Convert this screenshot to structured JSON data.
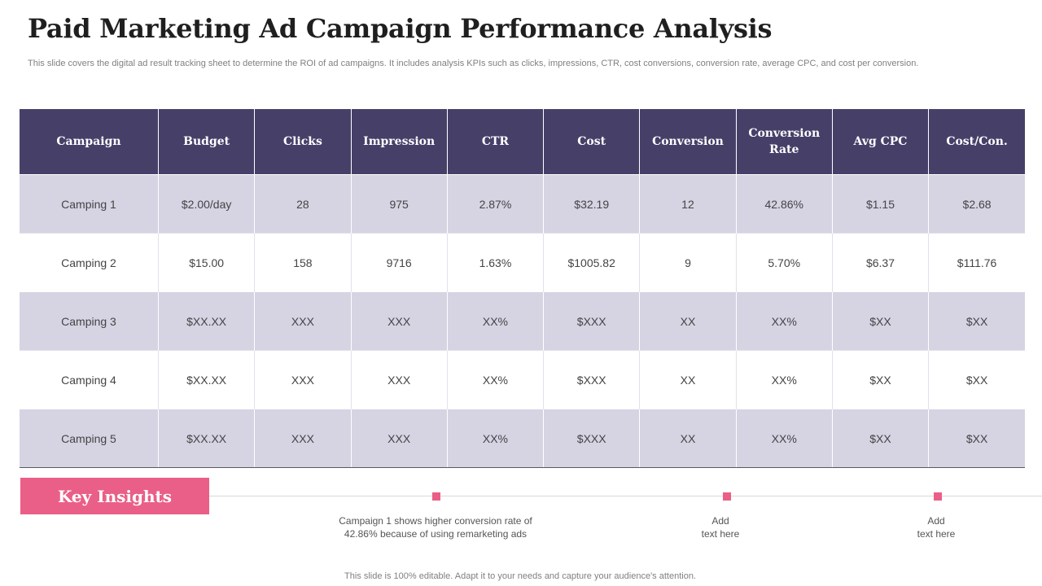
{
  "title": "Paid Marketing Ad Campaign Performance Analysis",
  "subtitle": "This slide covers the digital ad result tracking sheet to determine the ROI of ad campaigns. It includes analysis KPIs such as clicks, impressions, CTR, cost conversions, conversion rate, average CPC, and cost per conversion.",
  "table": {
    "headers": [
      "Campaign",
      "Budget",
      "Clicks",
      "Impression",
      "CTR",
      "Cost",
      "Conversion",
      "Conversion Rate",
      "Avg CPC",
      "Cost/Con."
    ],
    "rows": [
      [
        "Camping 1",
        "$2.00/day",
        "28",
        "975",
        "2.87%",
        "$32.19",
        "12",
        "42.86%",
        "$1.15",
        "$2.68"
      ],
      [
        "Camping 2",
        "$15.00",
        "158",
        "9716",
        "1.63%",
        "$1005.82",
        "9",
        "5.70%",
        "$6.37",
        "$111.76"
      ],
      [
        "Camping 3",
        "$XX.XX",
        "XXX",
        "XXX",
        "XX%",
        "$XXX",
        "XX",
        "XX%",
        "$XX",
        "$XX"
      ],
      [
        "Camping 4",
        "$XX.XX",
        "XXX",
        "XXX",
        "XX%",
        "$XXX",
        "XX",
        "XX%",
        "$XX",
        "$XX"
      ],
      [
        "Camping 5",
        "$XX.XX",
        "XXX",
        "XXX",
        "XX%",
        "$XXX",
        "XX",
        "XX%",
        "$XX",
        "$XX"
      ]
    ]
  },
  "insights": {
    "label": "Key Insights",
    "items": [
      {
        "line1": "Campaign 1 shows higher conversion rate of",
        "line2": "42.86% because of using remarketing ads"
      },
      {
        "line1": "Add",
        "line2": "text here"
      },
      {
        "line1": "Add",
        "line2": "text here"
      }
    ]
  },
  "footer": "This slide is 100% editable. Adapt it to your needs and capture your audience's attention.",
  "colors": {
    "header_bg": "#464069",
    "band_row": "#d6d3e3",
    "accent_pink": "#ea5f87"
  }
}
